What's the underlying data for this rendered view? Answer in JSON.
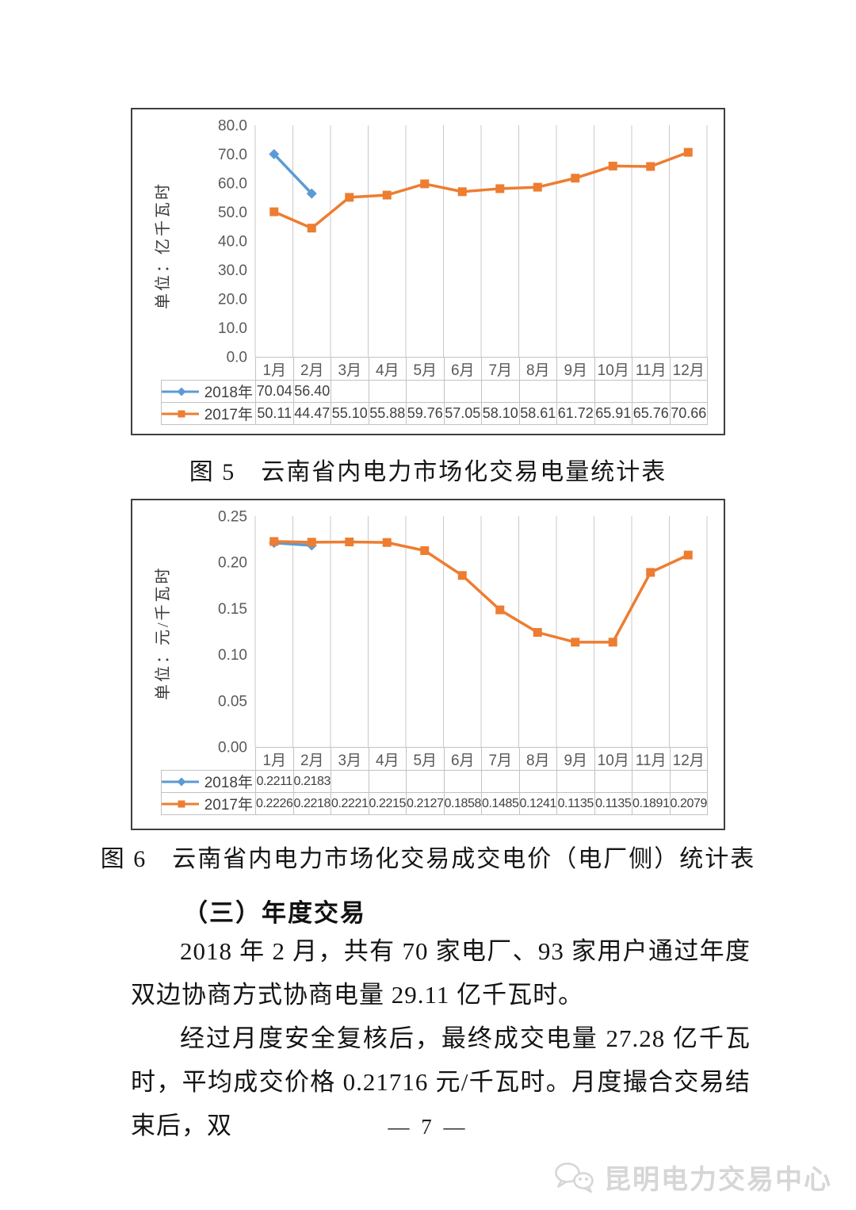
{
  "colors": {
    "series_2018": "#5B9BD5",
    "series_2017": "#ED7D31",
    "grid": "#c9c9c9",
    "axis_text": "#595959",
    "table_border": "#c2c2c2",
    "watermark": "#d6d6d6"
  },
  "chart_data": [
    {
      "type": "line",
      "figure_label": "图 5",
      "title": "云南省内电力市场化交易电量统计表",
      "caption": "图 5　云南省内电力市场化交易电量统计表",
      "ylabel": "单位：亿千瓦时",
      "xlabel": "",
      "ylim": [
        0,
        80
      ],
      "yticks": [
        "0.0",
        "10.0",
        "20.0",
        "30.0",
        "40.0",
        "50.0",
        "60.0",
        "70.0",
        "80.0"
      ],
      "grid": "vertical-only",
      "legend_position": "table-left",
      "categories": [
        "1月",
        "2月",
        "3月",
        "4月",
        "5月",
        "6月",
        "7月",
        "8月",
        "9月",
        "10月",
        "11月",
        "12月"
      ],
      "series": [
        {
          "name": "2018年",
          "color": "#5B9BD5",
          "marker": "diamond",
          "values": [
            70.04,
            56.4,
            null,
            null,
            null,
            null,
            null,
            null,
            null,
            null,
            null,
            null
          ],
          "labels": [
            "70.04",
            "56.40",
            "",
            "",
            "",
            "",
            "",
            "",
            "",
            "",
            "",
            ""
          ]
        },
        {
          "name": "2017年",
          "color": "#ED7D31",
          "marker": "square",
          "values": [
            50.11,
            44.47,
            55.1,
            55.88,
            59.76,
            57.05,
            58.1,
            58.61,
            61.72,
            65.91,
            65.76,
            70.66
          ],
          "labels": [
            "50.11",
            "44.47",
            "55.10",
            "55.88",
            "59.76",
            "57.05",
            "58.10",
            "58.61",
            "61.72",
            "65.91",
            "65.76",
            "70.66"
          ]
        }
      ]
    },
    {
      "type": "line",
      "figure_label": "图 6",
      "title": "云南省内电力市场化交易成交电价（电厂侧）统计表",
      "caption": "图 6　云南省内电力市场化交易成交电价（电厂侧）统计表",
      "ylabel": "单位：元/千瓦时",
      "xlabel": "",
      "ylim": [
        0,
        0.25
      ],
      "yticks": [
        "0.00",
        "0.05",
        "0.10",
        "0.15",
        "0.20",
        "0.25"
      ],
      "grid": "vertical-only",
      "legend_position": "table-left",
      "categories": [
        "1月",
        "2月",
        "3月",
        "4月",
        "5月",
        "6月",
        "7月",
        "8月",
        "9月",
        "10月",
        "11月",
        "12月"
      ],
      "series": [
        {
          "name": "2018年",
          "color": "#5B9BD5",
          "marker": "diamond",
          "values": [
            0.2211,
            0.2183,
            null,
            null,
            null,
            null,
            null,
            null,
            null,
            null,
            null,
            null
          ],
          "labels": [
            "0.2211",
            "0.2183",
            "",
            "",
            "",
            "",
            "",
            "",
            "",
            "",
            "",
            ""
          ]
        },
        {
          "name": "2017年",
          "color": "#ED7D31",
          "marker": "square",
          "values": [
            0.2226,
            0.2218,
            0.2221,
            0.2215,
            0.2127,
            0.1858,
            0.1485,
            0.1241,
            0.1135,
            0.1135,
            0.1891,
            0.2079
          ],
          "labels": [
            "0.2226",
            "0.2218",
            "0.2221",
            "0.2215",
            "0.2127",
            "0.1858",
            "0.1485",
            "0.1241",
            "0.1135",
            "0.1135",
            "0.1891",
            "0.2079"
          ]
        }
      ]
    }
  ],
  "section": {
    "heading": "（三）年度交易",
    "paragraphs": [
      "2018 年 2 月，共有 70 家电厂、93 家用户通过年度双边协商方式协商电量 29.11 亿千瓦时。",
      "经过月度安全复核后，最终成交电量 27.28 亿千瓦时，平均成交价格 0.21716 元/千瓦时。月度撮合交易结束后，双"
    ]
  },
  "footer": {
    "page_number": "— 7 —",
    "watermark_text": "昆明电力交易中心"
  }
}
